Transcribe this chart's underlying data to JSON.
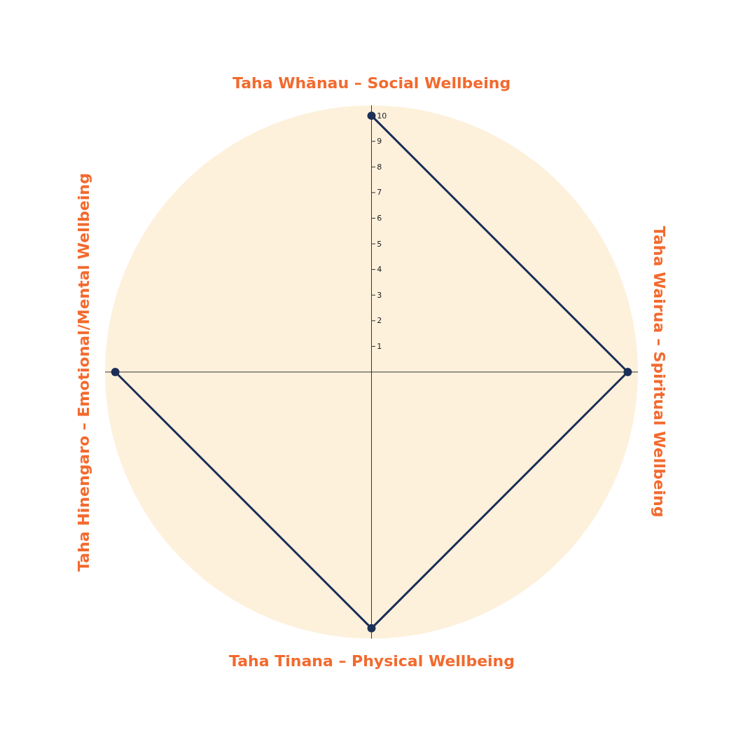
{
  "chart_data": {
    "type": "radar",
    "categories": [
      "Taha Whānau – Social Wellbeing",
      "Taha Wairua – Spiritual Wellbeing",
      "Taha Tinana – Physical Wellbeing",
      "Taha Hinengaro – Emotional/Mental Wellbeing"
    ],
    "series": [
      {
        "color": "#1b2f57",
        "values": [
          10,
          10,
          10,
          10
        ]
      }
    ],
    "ylim": [
      0,
      10.4
    ],
    "yticks": [
      1,
      2,
      3,
      4,
      5,
      6,
      7,
      8,
      9,
      10
    ],
    "grid": false,
    "marker": "circle",
    "line_style": "solid"
  }
}
